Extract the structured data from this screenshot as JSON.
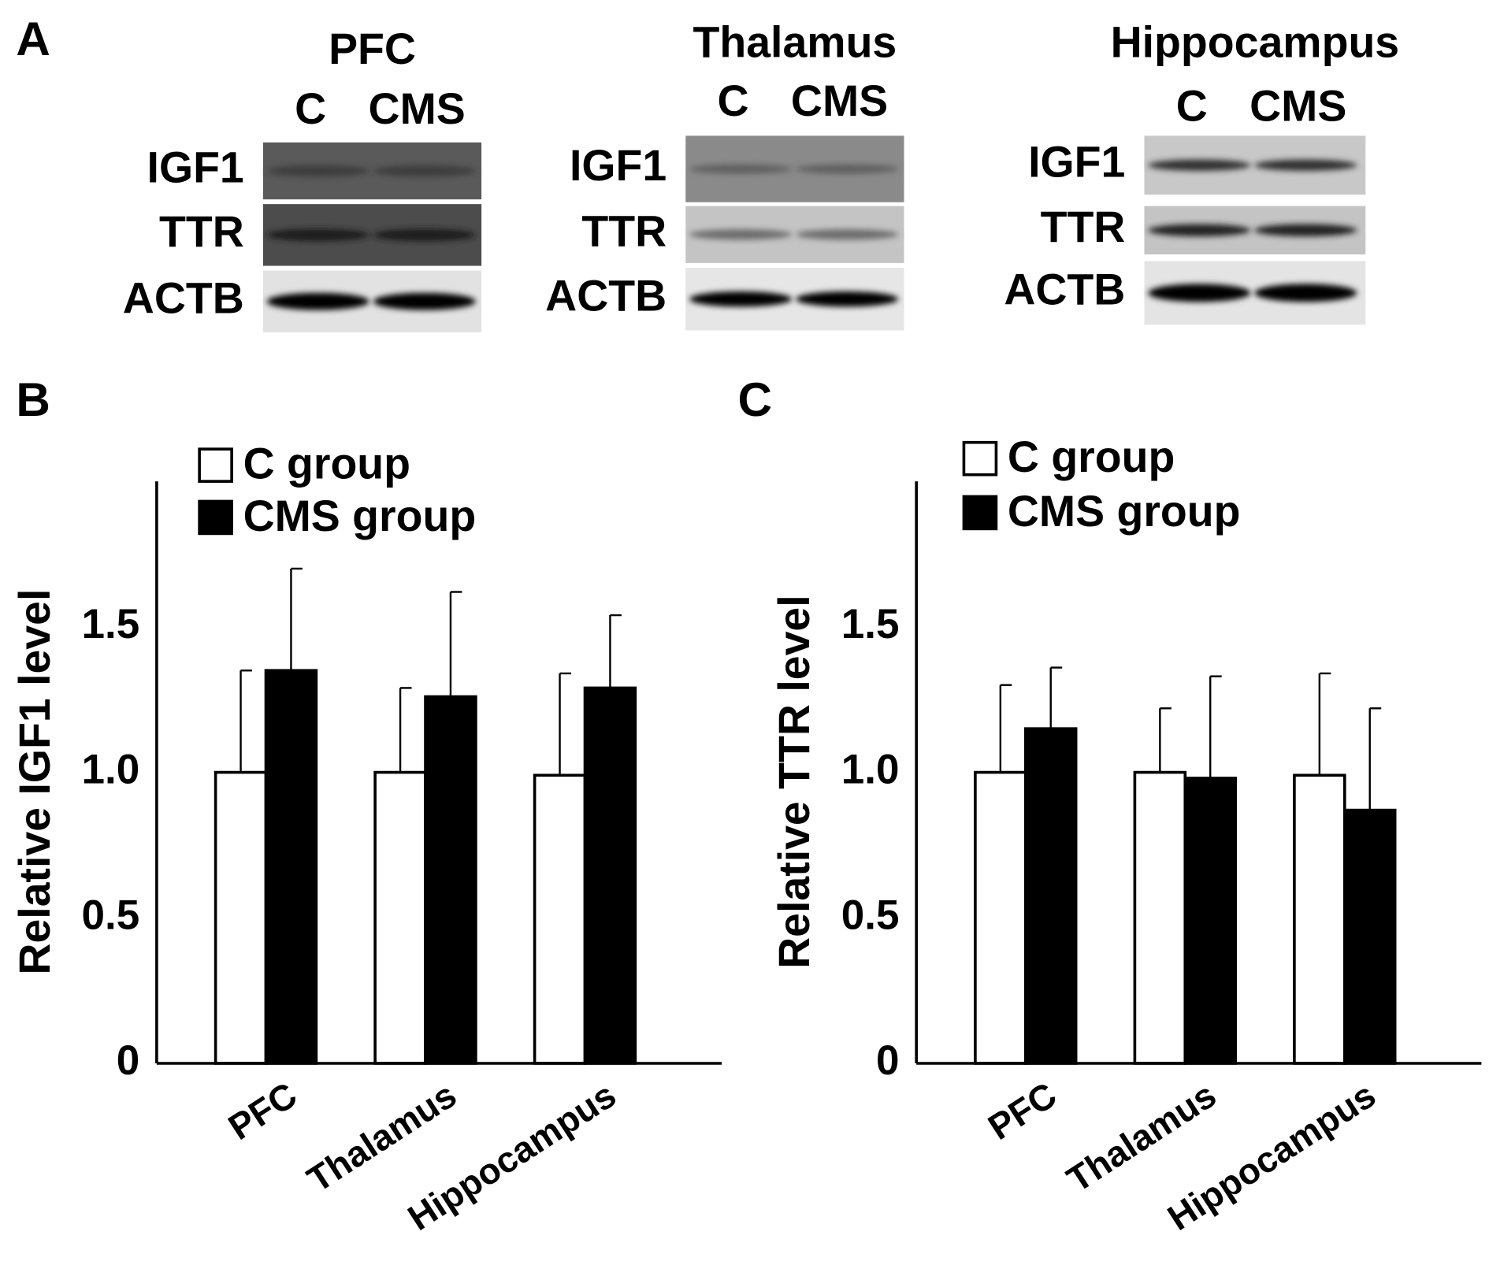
{
  "panel_a": {
    "label": "A",
    "blots": [
      {
        "title": "PFC",
        "lanes": [
          "C",
          "CMS"
        ],
        "rows": [
          "IGF1",
          "TTR",
          "ACTB"
        ]
      },
      {
        "title": "Thalamus",
        "lanes": [
          "C",
          "CMS"
        ],
        "rows": [
          "IGF1",
          "TTR",
          "ACTB"
        ]
      },
      {
        "title": "Hippocampus",
        "lanes": [
          "C",
          "CMS"
        ],
        "rows": [
          "IGF1",
          "TTR",
          "ACTB"
        ]
      }
    ]
  },
  "chart_data": [
    {
      "type": "bar",
      "panel_label": "B",
      "y_label": "Relative IGF1 level",
      "categories": [
        "PFC",
        "Thalamus",
        "Hippocampus"
      ],
      "series": [
        {
          "name": "C group",
          "color": "#ffffff",
          "values": [
            1.0,
            1.0,
            0.99
          ],
          "errors": [
            0.35,
            0.29,
            0.35
          ]
        },
        {
          "name": "CMS group",
          "color": "#000000",
          "values": [
            1.35,
            1.26,
            1.29
          ],
          "errors": [
            0.35,
            0.36,
            0.25
          ]
        }
      ],
      "ylim": [
        0,
        2.0
      ],
      "yticks": [
        0,
        0.5,
        {
          "value": 1,
          "label": "1.0"
        },
        1.5
      ],
      "grid": false
    },
    {
      "type": "bar",
      "panel_label": "C",
      "y_label": "Relative TTR level",
      "categories": [
        "PFC",
        "Thalamus",
        "Hippocampus"
      ],
      "series": [
        {
          "name": "C group",
          "color": "#ffffff",
          "values": [
            1.0,
            1.0,
            0.99
          ],
          "errors": [
            0.3,
            0.22,
            0.35
          ]
        },
        {
          "name": "CMS group",
          "color": "#000000",
          "values": [
            1.15,
            0.98,
            0.87
          ],
          "errors": [
            0.21,
            0.35,
            0.35
          ]
        }
      ],
      "ylim": [
        0,
        2.0
      ],
      "yticks": [
        0,
        0.5,
        {
          "value": 1,
          "label": "1.0"
        },
        1.5
      ],
      "grid": false
    }
  ]
}
